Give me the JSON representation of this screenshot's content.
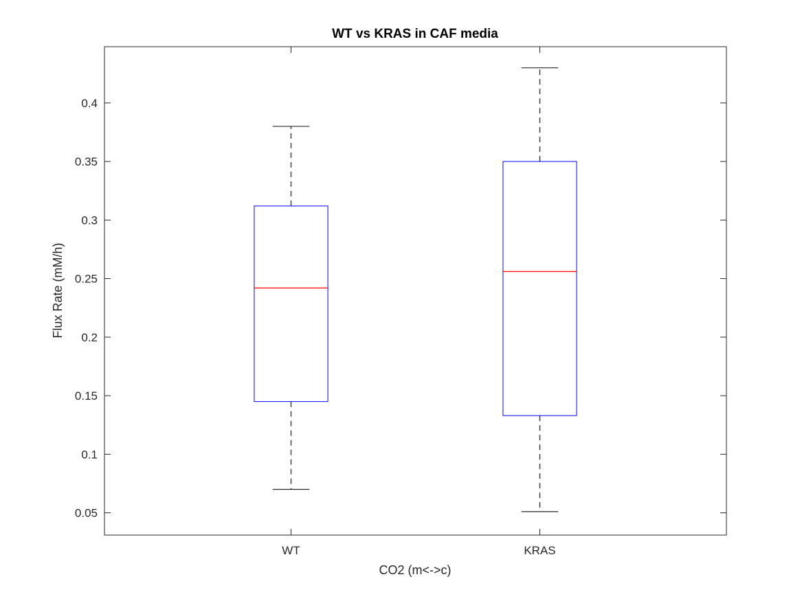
{
  "chart_data": {
    "type": "box",
    "title": "WT vs KRAS in CAF media",
    "xlabel": "CO2 (m<->c)",
    "ylabel": "Flux Rate (mM/h)",
    "ylim": [
      0.031,
      0.448
    ],
    "yticks": [
      0.05,
      0.1,
      0.15,
      0.2,
      0.25,
      0.3,
      0.35,
      0.4
    ],
    "ytick_labels": [
      "0.05",
      "0.1",
      "0.15",
      "0.2",
      "0.25",
      "0.3",
      "0.35",
      "0.4"
    ],
    "categories": [
      "WT",
      "KRAS"
    ],
    "boxes": [
      {
        "category": "WT",
        "whisker_low": 0.07,
        "q1": 0.145,
        "median": 0.242,
        "q3": 0.312,
        "whisker_high": 0.38
      },
      {
        "category": "KRAS",
        "whisker_low": 0.051,
        "q1": 0.133,
        "median": 0.256,
        "q3": 0.35,
        "whisker_high": 0.43
      }
    ],
    "grid": false,
    "colors": {
      "box": "#0000ff",
      "median": "#ff0000",
      "whisker": "#404040",
      "axes": "#262626"
    }
  }
}
